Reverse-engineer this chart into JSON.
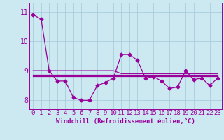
{
  "xlabel": "Windchill (Refroidissement éolien,°C)",
  "background_color": "#cce8f0",
  "grid_color": "#aaccdd",
  "line_color": "#990099",
  "x_values": [
    0,
    1,
    2,
    3,
    4,
    5,
    6,
    7,
    8,
    9,
    10,
    11,
    12,
    13,
    14,
    15,
    16,
    17,
    18,
    19,
    20,
    21,
    22,
    23
  ],
  "main_series": [
    10.9,
    10.75,
    9.0,
    8.65,
    8.65,
    8.1,
    8.0,
    8.0,
    8.5,
    8.6,
    8.75,
    9.55,
    9.55,
    9.35,
    8.75,
    8.8,
    8.65,
    8.4,
    8.45,
    9.0,
    8.7,
    8.75,
    8.5,
    8.75
  ],
  "smooth_line1": [
    9.0,
    9.0,
    9.0,
    9.0,
    9.0,
    9.0,
    9.0,
    9.0,
    9.0,
    9.0,
    9.0,
    8.9,
    8.9,
    8.9,
    8.9,
    8.9,
    8.9,
    8.9,
    8.9,
    8.9,
    8.9,
    8.9,
    8.9,
    8.9
  ],
  "smooth_line2": [
    8.87,
    8.87,
    8.87,
    8.87,
    8.87,
    8.87,
    8.87,
    8.87,
    8.87,
    8.87,
    8.87,
    8.87,
    8.87,
    8.87,
    8.87,
    8.87,
    8.87,
    8.87,
    8.87,
    8.87,
    8.87,
    8.87,
    8.87,
    8.87
  ],
  "smooth_line3": [
    8.82,
    8.82,
    8.82,
    8.82,
    8.82,
    8.82,
    8.82,
    8.82,
    8.82,
    8.82,
    8.82,
    8.82,
    8.82,
    8.82,
    8.82,
    8.82,
    8.82,
    8.82,
    8.82,
    8.82,
    8.82,
    8.82,
    8.82,
    8.82
  ],
  "ylim": [
    7.7,
    11.3
  ],
  "yticks": [
    8,
    9,
    10,
    11
  ],
  "xticks": [
    0,
    1,
    2,
    3,
    4,
    5,
    6,
    7,
    8,
    9,
    10,
    11,
    12,
    13,
    14,
    15,
    16,
    17,
    18,
    19,
    20,
    21,
    22,
    23
  ],
  "marker": "D",
  "marker_size": 2.5,
  "line_width": 0.9,
  "tick_font_size": 6.5,
  "xlabel_font_size": 6.5
}
